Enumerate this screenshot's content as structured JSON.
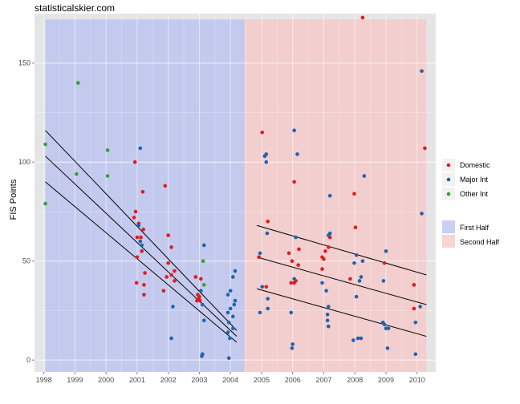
{
  "chart_data": {
    "type": "scatter",
    "title": "statisticalskier.com",
    "xlabel": "",
    "ylabel": "FIS Points",
    "xlim": [
      1997.7,
      2010.6
    ],
    "ylim": [
      -6,
      175
    ],
    "x_ticks": [
      "1998",
      "1999",
      "2000",
      "2001",
      "2002",
      "2003",
      "2004",
      "2005",
      "2006",
      "2007",
      "2008",
      "2009",
      "2010"
    ],
    "y_ticks": [
      "0",
      "50",
      "100",
      "150"
    ],
    "grid": true,
    "legend_position": "right",
    "colors": {
      "panel_bg": "#e5e5e5",
      "grid": "#ffffff",
      "first_half_fill": "#b8bff0",
      "second_half_fill": "#f5c6c6",
      "Domestic": "#e41a1c",
      "Major Int": "#1f63ad",
      "Other Int": "#33a02c"
    },
    "regions": [
      {
        "name": "First Half",
        "x_start": 1998.05,
        "x_end": 2004.45,
        "y_max": 172
      },
      {
        "name": "Second Half",
        "x_start": 2004.45,
        "x_end": 2010.3,
        "y_max": 172
      }
    ],
    "series": [
      {
        "name": "Domestic",
        "points": [
          [
            2000.93,
            100
          ],
          [
            2000.9,
            72
          ],
          [
            2000.95,
            75
          ],
          [
            2001.05,
            69
          ],
          [
            2001.0,
            62
          ],
          [
            2001.12,
            62
          ],
          [
            2001.2,
            66
          ],
          [
            2001.18,
            85
          ],
          [
            2001.0,
            52
          ],
          [
            2001.15,
            55
          ],
          [
            2001.25,
            44
          ],
          [
            2001.22,
            38
          ],
          [
            2001.22,
            33
          ],
          [
            2000.98,
            39
          ],
          [
            2001.85,
            35
          ],
          [
            2001.9,
            88
          ],
          [
            2002.0,
            63
          ],
          [
            2002.1,
            57
          ],
          [
            2002.0,
            49
          ],
          [
            2002.2,
            45
          ],
          [
            2002.1,
            43
          ],
          [
            2002.2,
            40
          ],
          [
            2001.95,
            42
          ],
          [
            2002.88,
            42
          ],
          [
            2002.95,
            33
          ],
          [
            2002.92,
            30
          ],
          [
            2002.98,
            31
          ],
          [
            2003.0,
            32
          ],
          [
            2003.02,
            30
          ],
          [
            2003.05,
            41
          ],
          [
            2004.92,
            52
          ],
          [
            2005.02,
            115
          ],
          [
            2005.2,
            70
          ],
          [
            2005.15,
            37
          ],
          [
            2005.88,
            54
          ],
          [
            2005.95,
            39
          ],
          [
            2005.98,
            50
          ],
          [
            2006.05,
            39
          ],
          [
            2006.05,
            90
          ],
          [
            2006.2,
            56
          ],
          [
            2006.18,
            48
          ],
          [
            2006.1,
            40
          ],
          [
            2006.95,
            52
          ],
          [
            2007.0,
            51
          ],
          [
            2007.05,
            55
          ],
          [
            2007.15,
            57
          ],
          [
            2007.2,
            62
          ],
          [
            2006.95,
            46
          ],
          [
            2007.98,
            84
          ],
          [
            2008.02,
            67
          ],
          [
            2007.85,
            41
          ],
          [
            2008.25,
            173
          ],
          [
            2008.95,
            49
          ],
          [
            2009.9,
            38
          ],
          [
            2009.9,
            26
          ],
          [
            2010.25,
            107
          ]
        ]
      },
      {
        "name": "Major Int",
        "points": [
          [
            2001.1,
            107
          ],
          [
            2001.05,
            68
          ],
          [
            2001.1,
            60
          ],
          [
            2001.15,
            58
          ],
          [
            2002.15,
            27
          ],
          [
            2002.1,
            11
          ],
          [
            2003.05,
            35
          ],
          [
            2003.1,
            28
          ],
          [
            2003.15,
            58
          ],
          [
            2003.15,
            20
          ],
          [
            2003.1,
            3
          ],
          [
            2003.08,
            2
          ],
          [
            2003.92,
            33
          ],
          [
            2004.0,
            26
          ],
          [
            2004.0,
            35
          ],
          [
            2003.92,
            24
          ],
          [
            2003.95,
            19
          ],
          [
            2003.92,
            14
          ],
          [
            2003.98,
            11
          ],
          [
            2003.95,
            1
          ],
          [
            2004.08,
            42
          ],
          [
            2004.15,
            45
          ],
          [
            2004.12,
            28
          ],
          [
            2004.15,
            30
          ],
          [
            2004.08,
            22
          ],
          [
            2004.08,
            16
          ],
          [
            2004.95,
            54
          ],
          [
            2004.95,
            24
          ],
          [
            2005.02,
            37
          ],
          [
            2005.1,
            103
          ],
          [
            2005.15,
            104
          ],
          [
            2005.15,
            100
          ],
          [
            2005.18,
            64
          ],
          [
            2005.2,
            26
          ],
          [
            2005.2,
            31
          ],
          [
            2006.05,
            116
          ],
          [
            2006.15,
            104
          ],
          [
            2006.1,
            62
          ],
          [
            2005.95,
            24
          ],
          [
            2006.0,
            8
          ],
          [
            2005.98,
            6
          ],
          [
            2006.05,
            41
          ],
          [
            2007.2,
            83
          ],
          [
            2007.2,
            64
          ],
          [
            2007.15,
            63
          ],
          [
            2006.95,
            39
          ],
          [
            2007.08,
            35
          ],
          [
            2007.15,
            27
          ],
          [
            2007.12,
            23
          ],
          [
            2007.12,
            20
          ],
          [
            2007.15,
            17
          ],
          [
            2008.3,
            93
          ],
          [
            2008.05,
            53
          ],
          [
            2008.25,
            50
          ],
          [
            2008.2,
            42
          ],
          [
            2008.15,
            40
          ],
          [
            2007.98,
            49
          ],
          [
            2008.05,
            32
          ],
          [
            2007.95,
            10
          ],
          [
            2008.1,
            11
          ],
          [
            2008.2,
            11
          ],
          [
            2009.0,
            55
          ],
          [
            2008.92,
            40
          ],
          [
            2008.95,
            18
          ],
          [
            2009.0,
            16
          ],
          [
            2009.08,
            16
          ],
          [
            2008.9,
            19
          ],
          [
            2009.05,
            6
          ],
          [
            2010.15,
            146
          ],
          [
            2010.15,
            74
          ],
          [
            2009.95,
            19
          ],
          [
            2010.1,
            27
          ],
          [
            2009.95,
            3
          ]
        ]
      },
      {
        "name": "Other Int",
        "points": [
          [
            1998.05,
            109
          ],
          [
            1998.05,
            79
          ],
          [
            1999.1,
            140
          ],
          [
            1999.05,
            94
          ],
          [
            2000.05,
            106
          ],
          [
            2000.05,
            93
          ],
          [
            2003.12,
            50
          ],
          [
            2003.15,
            38
          ]
        ]
      }
    ],
    "fit_lines": [
      {
        "x": [
          1998.05,
          2004.2
        ],
        "y": [
          116,
          15
        ]
      },
      {
        "x": [
          1998.05,
          2004.2
        ],
        "y": [
          103,
          12
        ]
      },
      {
        "x": [
          1998.05,
          2004.2
        ],
        "y": [
          90,
          9
        ]
      },
      {
        "x": [
          2004.85,
          2010.3
        ],
        "y": [
          68,
          43
        ]
      },
      {
        "x": [
          2004.85,
          2010.3
        ],
        "y": [
          52,
          28
        ]
      },
      {
        "x": [
          2004.85,
          2010.3
        ],
        "y": [
          36,
          12
        ]
      }
    ]
  }
}
